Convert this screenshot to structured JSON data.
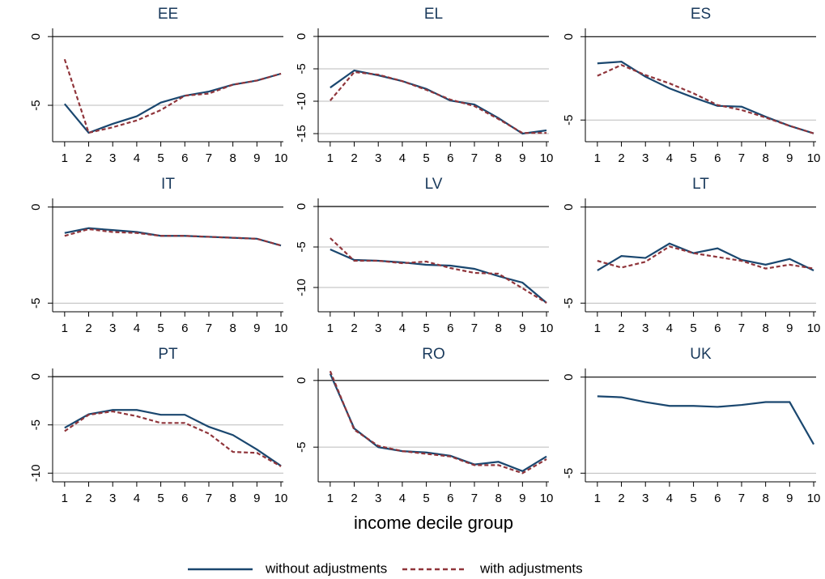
{
  "chart_data": [
    {
      "type": "line",
      "title": "EE",
      "x": [
        1,
        2,
        3,
        4,
        5,
        6,
        7,
        8,
        9,
        10
      ],
      "xlim": [
        0.5,
        10.1
      ],
      "xticks": [
        1,
        2,
        3,
        4,
        5,
        6,
        7,
        8,
        9,
        10
      ],
      "ylim": [
        -7.65,
        0.6
      ],
      "yticks": [
        0,
        -5
      ],
      "series": [
        {
          "name": "without adjustments",
          "color": "#1a476f",
          "values": [
            -4.9,
            -7.0,
            -6.35,
            -5.8,
            -4.8,
            -4.3,
            -4.0,
            -3.5,
            -3.2,
            -2.7
          ]
        },
        {
          "name": "with adjustments",
          "color": "#90353b",
          "values": [
            -1.65,
            -7.0,
            -6.6,
            -6.1,
            -5.35,
            -4.3,
            -4.15,
            -3.5,
            -3.2,
            -2.7
          ]
        }
      ]
    },
    {
      "type": "line",
      "title": "EL",
      "x": [
        1,
        2,
        3,
        4,
        5,
        6,
        7,
        8,
        9,
        10
      ],
      "xlim": [
        0.5,
        10.1
      ],
      "xticks": [
        1,
        2,
        3,
        4,
        5,
        6,
        7,
        8,
        9,
        10
      ],
      "ylim": [
        -16.25,
        1.25
      ],
      "yticks": [
        0,
        -5,
        -10,
        -15
      ],
      "series": [
        {
          "name": "without adjustments",
          "color": "#1a476f",
          "values": [
            -7.9,
            -5.25,
            -6.0,
            -6.9,
            -8.1,
            -9.9,
            -10.5,
            -12.6,
            -15.0,
            -14.5
          ]
        },
        {
          "name": "with adjustments",
          "color": "#90353b",
          "values": [
            -9.9,
            -5.5,
            -5.9,
            -6.9,
            -8.25,
            -9.75,
            -10.75,
            -12.75,
            -14.9,
            -14.9
          ]
        }
      ]
    },
    {
      "type": "line",
      "title": "ES",
      "x": [
        1,
        2,
        3,
        4,
        5,
        6,
        7,
        8,
        9,
        10
      ],
      "xlim": [
        0.5,
        10.1
      ],
      "xticks": [
        1,
        2,
        3,
        4,
        5,
        6,
        7,
        8,
        9,
        10
      ],
      "ylim": [
        -6.3,
        0.5
      ],
      "yticks": [
        0,
        -5
      ],
      "series": [
        {
          "name": "without adjustments",
          "color": "#1a476f",
          "values": [
            -1.6,
            -1.5,
            -2.4,
            -3.1,
            -3.65,
            -4.15,
            -4.2,
            -4.8,
            -5.35,
            -5.8
          ]
        },
        {
          "name": "with adjustments",
          "color": "#90353b",
          "values": [
            -2.35,
            -1.7,
            -2.3,
            -2.8,
            -3.4,
            -4.1,
            -4.4,
            -4.85,
            -5.35,
            -5.8
          ]
        }
      ]
    },
    {
      "type": "line",
      "title": "IT",
      "x": [
        1,
        2,
        3,
        4,
        5,
        6,
        7,
        8,
        9,
        10
      ],
      "xlim": [
        0.5,
        10.1
      ],
      "xticks": [
        1,
        2,
        3,
        4,
        5,
        6,
        7,
        8,
        9,
        10
      ],
      "ylim": [
        -5.45,
        0.45
      ],
      "yticks": [
        0,
        -5
      ],
      "series": [
        {
          "name": "without adjustments",
          "color": "#1a476f",
          "values": [
            -1.35,
            -1.1,
            -1.2,
            -1.3,
            -1.5,
            -1.5,
            -1.55,
            -1.6,
            -1.65,
            -2.0
          ]
        },
        {
          "name": "with adjustments",
          "color": "#90353b",
          "values": [
            -1.5,
            -1.15,
            -1.3,
            -1.35,
            -1.5,
            -1.5,
            -1.55,
            -1.6,
            -1.65,
            -2.0
          ]
        }
      ]
    },
    {
      "type": "line",
      "title": "LV",
      "x": [
        1,
        2,
        3,
        4,
        5,
        6,
        7,
        8,
        9,
        10
      ],
      "xlim": [
        0.5,
        10.1
      ],
      "xticks": [
        1,
        2,
        3,
        4,
        5,
        6,
        7,
        8,
        9,
        10
      ],
      "ylim": [
        -13,
        1
      ],
      "yticks": [
        0,
        -5,
        -10
      ],
      "series": [
        {
          "name": "without adjustments",
          "color": "#1a476f",
          "values": [
            -5.3,
            -6.6,
            -6.7,
            -6.9,
            -7.2,
            -7.3,
            -7.7,
            -8.6,
            -9.4,
            -11.9
          ]
        },
        {
          "name": "with adjustments",
          "color": "#90353b",
          "values": [
            -3.9,
            -6.7,
            -6.7,
            -7.0,
            -6.8,
            -7.6,
            -8.2,
            -8.3,
            -10.1,
            -11.9
          ]
        }
      ]
    },
    {
      "type": "line",
      "title": "LT",
      "x": [
        1,
        2,
        3,
        4,
        5,
        6,
        7,
        8,
        9,
        10
      ],
      "xlim": [
        0.5,
        10.1
      ],
      "xticks": [
        1,
        2,
        3,
        4,
        5,
        6,
        7,
        8,
        9,
        10
      ],
      "ylim": [
        -5.45,
        0.45
      ],
      "yticks": [
        0,
        -5
      ],
      "series": [
        {
          "name": "without adjustments",
          "color": "#1a476f",
          "values": [
            -3.3,
            -2.55,
            -2.65,
            -1.9,
            -2.4,
            -2.15,
            -2.75,
            -3.0,
            -2.7,
            -3.3
          ]
        },
        {
          "name": "with adjustments",
          "color": "#90353b",
          "values": [
            -2.8,
            -3.15,
            -2.85,
            -2.05,
            -2.4,
            -2.6,
            -2.8,
            -3.2,
            -3.0,
            -3.2
          ]
        }
      ]
    },
    {
      "type": "line",
      "title": "PT",
      "x": [
        1,
        2,
        3,
        4,
        5,
        6,
        7,
        8,
        9,
        10
      ],
      "xlim": [
        0.5,
        10.1
      ],
      "xticks": [
        1,
        2,
        3,
        4,
        5,
        6,
        7,
        8,
        9,
        10
      ],
      "ylim": [
        -10.9,
        0.85
      ],
      "yticks": [
        0,
        -5,
        -10
      ],
      "series": [
        {
          "name": "without adjustments",
          "color": "#1a476f",
          "values": [
            -5.3,
            -3.9,
            -3.45,
            -3.45,
            -3.95,
            -3.95,
            -5.2,
            -6.05,
            -7.55,
            -9.25
          ]
        },
        {
          "name": "with adjustments",
          "color": "#90353b",
          "values": [
            -5.65,
            -3.95,
            -3.6,
            -4.1,
            -4.8,
            -4.8,
            -5.9,
            -7.8,
            -7.9,
            -9.3
          ]
        }
      ]
    },
    {
      "type": "line",
      "title": "RO",
      "x_label": "income decile group",
      "x": [
        1,
        2,
        3,
        4,
        5,
        6,
        7,
        8,
        9,
        10
      ],
      "xlim": [
        0.5,
        10.1
      ],
      "xticks": [
        1,
        2,
        3,
        4,
        5,
        6,
        7,
        8,
        9,
        10
      ],
      "ylim": [
        -7.6,
        0.9
      ],
      "yticks": [
        0,
        -5
      ],
      "series": [
        {
          "name": "without adjustments",
          "color": "#1a476f",
          "values": [
            0.5,
            -3.6,
            -5.0,
            -5.3,
            -5.4,
            -5.65,
            -6.3,
            -6.1,
            -6.8,
            -5.7
          ]
        },
        {
          "name": "with adjustments",
          "color": "#90353b",
          "values": [
            0.7,
            -3.7,
            -4.9,
            -5.3,
            -5.5,
            -5.7,
            -6.35,
            -6.35,
            -6.95,
            -5.9
          ]
        }
      ]
    },
    {
      "type": "line",
      "title": "UK",
      "x": [
        1,
        2,
        3,
        4,
        5,
        6,
        7,
        8,
        9,
        10
      ],
      "xlim": [
        0.5,
        10.1
      ],
      "xticks": [
        1,
        2,
        3,
        4,
        5,
        6,
        7,
        8,
        9,
        10
      ],
      "ylim": [
        -5.45,
        0.45
      ],
      "yticks": [
        0,
        -5
      ],
      "series": [
        {
          "name": "without adjustments",
          "color": "#1a476f",
          "values": [
            -1.0,
            -1.05,
            -1.3,
            -1.5,
            -1.5,
            -1.55,
            -1.45,
            -1.3,
            -1.3,
            -3.5
          ]
        }
      ]
    }
  ]
}
